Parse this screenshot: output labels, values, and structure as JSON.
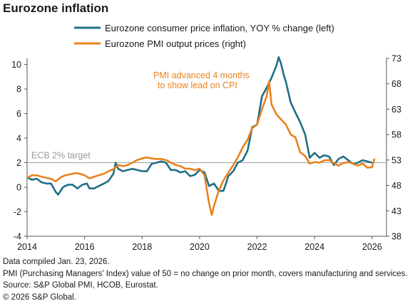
{
  "title": "Eurozone inflation",
  "notes": [
    "Data compiled Jan. 23, 2026.",
    "PMI (Purchasing Managers' Index) value of 50 = no change on prior month, covers manufacturing and services.",
    "Source: S&P Global PMI, HCOB, Eurostat.",
    "© 2026 S&P Global."
  ],
  "colors": {
    "cpi": "#1f6f86",
    "pmi": "#e8821e",
    "annotation": "#e8821e",
    "target_line": "#a6a6a6",
    "target_text": "#9a9a9a",
    "axis": "#555555"
  },
  "chart_data": {
    "type": "line",
    "title": "Eurozone inflation",
    "x_ticks": [
      "2014",
      "2016",
      "2018",
      "2020",
      "2022",
      "2024",
      "2026"
    ],
    "x_range": [
      2014.0,
      2026.5
    ],
    "y_left": {
      "range": [
        -4,
        10.5
      ],
      "ticks": [
        -4,
        -2,
        0,
        2,
        4,
        6,
        8,
        10
      ]
    },
    "y_right": {
      "range": [
        38,
        73
      ],
      "ticks": [
        38,
        43,
        48,
        53,
        58,
        63,
        68,
        73
      ]
    },
    "reference_line": {
      "label": "ECB 2% target",
      "y_left": 2
    },
    "annotation": {
      "lines": [
        "PMI advanced 4 months",
        "to show lead on CPI"
      ]
    },
    "legend_position": "top",
    "series": [
      {
        "name": "Eurozone consumer price inflation, YOY % change (left)",
        "axis": "left",
        "x": [
          2014.0,
          2014.17,
          2014.33,
          2014.5,
          2014.67,
          2014.83,
          2015.0,
          2015.08,
          2015.25,
          2015.42,
          2015.58,
          2015.75,
          2015.92,
          2016.08,
          2016.17,
          2016.33,
          2016.5,
          2016.67,
          2016.83,
          2017.0,
          2017.08,
          2017.17,
          2017.33,
          2017.5,
          2017.67,
          2017.83,
          2018.0,
          2018.17,
          2018.33,
          2018.5,
          2018.67,
          2018.83,
          2019.0,
          2019.17,
          2019.33,
          2019.5,
          2019.67,
          2019.83,
          2020.0,
          2020.17,
          2020.33,
          2020.5,
          2020.67,
          2020.83,
          2021.0,
          2021.17,
          2021.33,
          2021.5,
          2021.67,
          2021.83,
          2022.0,
          2022.17,
          2022.33,
          2022.5,
          2022.67,
          2022.75,
          2022.83,
          2022.92,
          2023.0,
          2023.17,
          2023.33,
          2023.5,
          2023.67,
          2023.83,
          2024.0,
          2024.17,
          2024.33,
          2024.5,
          2024.67,
          2024.83,
          2025.0,
          2025.17,
          2025.33,
          2025.5,
          2025.67,
          2025.83,
          2026.0
        ],
        "y": [
          0.8,
          0.6,
          0.7,
          0.4,
          0.3,
          0.3,
          -0.4,
          -0.6,
          0.0,
          0.2,
          0.2,
          -0.1,
          0.2,
          0.3,
          -0.1,
          -0.1,
          0.1,
          0.3,
          0.5,
          1.1,
          2.0,
          1.5,
          1.3,
          1.4,
          1.5,
          1.4,
          1.3,
          1.3,
          1.9,
          2.0,
          2.1,
          2.0,
          1.4,
          1.4,
          1.2,
          1.3,
          0.9,
          1.0,
          1.4,
          1.2,
          0.1,
          0.3,
          -0.3,
          -0.3,
          0.9,
          1.3,
          2.0,
          2.2,
          3.0,
          4.9,
          5.1,
          7.4,
          8.1,
          8.9,
          9.9,
          10.6,
          10.1,
          9.2,
          8.6,
          6.9,
          6.1,
          5.3,
          4.3,
          2.4,
          2.8,
          2.4,
          2.6,
          2.5,
          1.8,
          2.3,
          2.5,
          2.2,
          1.9,
          2.0,
          2.2,
          2.1,
          2.0
        ]
      },
      {
        "name": "Eurozone PMI output prices (right)",
        "axis": "right",
        "x": [
          2014.0,
          2014.17,
          2014.33,
          2014.5,
          2014.67,
          2014.83,
          2015.0,
          2015.17,
          2015.33,
          2015.5,
          2015.67,
          2015.83,
          2016.0,
          2016.17,
          2016.33,
          2016.5,
          2016.67,
          2016.83,
          2017.0,
          2017.17,
          2017.33,
          2017.5,
          2017.67,
          2017.83,
          2018.0,
          2018.17,
          2018.33,
          2018.5,
          2018.67,
          2018.83,
          2019.0,
          2019.17,
          2019.33,
          2019.5,
          2019.67,
          2019.83,
          2020.0,
          2020.17,
          2020.33,
          2020.42,
          2020.5,
          2020.67,
          2020.83,
          2021.0,
          2021.17,
          2021.33,
          2021.5,
          2021.67,
          2021.83,
          2022.0,
          2022.17,
          2022.33,
          2022.42,
          2022.5,
          2022.67,
          2022.83,
          2023.0,
          2023.17,
          2023.33,
          2023.5,
          2023.67,
          2023.83,
          2024.0,
          2024.17,
          2024.33,
          2024.5,
          2024.67,
          2024.83,
          2025.0,
          2025.17,
          2025.33,
          2025.5,
          2025.67,
          2025.83,
          2026.0,
          2026.08
        ],
        "y": [
          49.5,
          50.0,
          50.0,
          49.7,
          49.5,
          49.3,
          48.8,
          49.6,
          50.0,
          50.2,
          50.4,
          50.3,
          50.0,
          49.4,
          49.7,
          50.0,
          50.3,
          50.8,
          51.2,
          52.0,
          51.8,
          52.0,
          52.5,
          53.0,
          53.3,
          53.5,
          53.3,
          53.2,
          53.2,
          53.0,
          52.5,
          52.0,
          51.8,
          51.3,
          51.3,
          51.0,
          51.3,
          50.0,
          44.5,
          42.2,
          44.0,
          47.0,
          49.0,
          50.5,
          52.0,
          53.5,
          55.5,
          57.0,
          59.3,
          60.0,
          63.0,
          65.5,
          68.5,
          64.0,
          62.0,
          61.0,
          60.0,
          58.0,
          57.5,
          54.5,
          53.8,
          52.3,
          52.6,
          52.5,
          52.9,
          53.0,
          52.4,
          51.9,
          52.4,
          52.6,
          52.3,
          51.9,
          52.3,
          51.5,
          51.6,
          53.3
        ]
      }
    ]
  }
}
